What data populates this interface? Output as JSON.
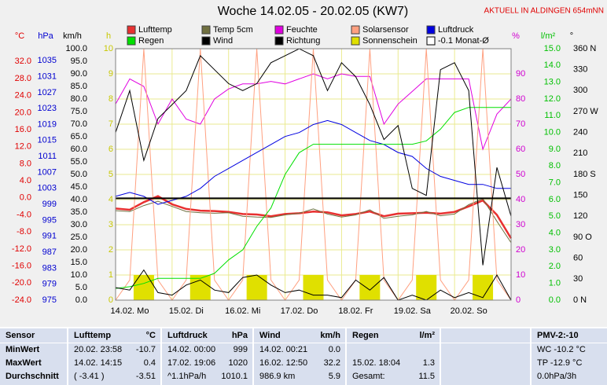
{
  "chart_data": {
    "type": "line",
    "title": "Woche 14.02.05 - 20.02.05 (KW7)",
    "annotation": "AKTUELL IN ALDINGEN 654mNN",
    "grid": true,
    "x": [
      0,
      0.25,
      0.5,
      0.75,
      1,
      1.25,
      1.5,
      1.75,
      2,
      2.25,
      2.5,
      2.75,
      3,
      3.25,
      3.5,
      3.75,
      4,
      4.25,
      4.5,
      4.75,
      5,
      5.25,
      5.5,
      5.75,
      6,
      6.25,
      6.5,
      6.75,
      7
    ],
    "xlim": [
      0,
      7
    ],
    "xticks": [
      {
        "value": 0,
        "label": "14.02.  Mo"
      },
      {
        "value": 1,
        "label": "15.02.  Di"
      },
      {
        "value": 2,
        "label": "16.02.  Mi"
      },
      {
        "value": 3,
        "label": "17.02.  Do"
      },
      {
        "value": 4,
        "label": "18.02.  Fr"
      },
      {
        "value": 5,
        "label": "19.02.  Sa"
      },
      {
        "value": 6,
        "label": "20.02.  So"
      }
    ],
    "axes": [
      {
        "label": "°C",
        "color": "#e00000",
        "ylim": [
          -24,
          35
        ],
        "yticks": [
          {
            "value": 32,
            "label": "32.0"
          },
          {
            "value": 28,
            "label": "28.0"
          },
          {
            "value": 24,
            "label": "24.0"
          },
          {
            "value": 20,
            "label": "20.0"
          },
          {
            "value": 16,
            "label": "16.0"
          },
          {
            "value": 12,
            "label": "12.0"
          },
          {
            "value": 8,
            "label": "8.0"
          },
          {
            "value": 4,
            "label": "4.0"
          },
          {
            "value": 0,
            "label": "0.0"
          },
          {
            "value": -4,
            "label": "-4.0"
          },
          {
            "value": -8,
            "label": "-8.0"
          },
          {
            "value": -12,
            "label": "-12.0"
          },
          {
            "value": -16,
            "label": "-16.0"
          },
          {
            "value": -20,
            "label": "-20.0"
          },
          {
            "value": -24,
            "label": "-24.0"
          }
        ]
      },
      {
        "label": "hPa",
        "color": "#0000d0",
        "ylim": [
          975,
          1038
        ],
        "yticks": [
          1035,
          1031,
          1027,
          1023,
          1019,
          1015,
          1011,
          1007,
          1003,
          999,
          995,
          991,
          987,
          983,
          979,
          975
        ]
      },
      {
        "label": "km/h",
        "color": "#000000",
        "ylim": [
          0,
          100
        ],
        "yticks": [
          {
            "value": 100,
            "label": "100.0"
          },
          {
            "value": 95,
            "label": "95.0"
          },
          {
            "value": 90,
            "label": "90.0"
          },
          {
            "value": 85,
            "label": "85.0"
          },
          {
            "value": 80,
            "label": "80.0"
          },
          {
            "value": 75,
            "label": "75.0"
          },
          {
            "value": 70,
            "label": "70.0"
          },
          {
            "value": 65,
            "label": "65.0"
          },
          {
            "value": 60,
            "label": "60.0"
          },
          {
            "value": 55,
            "label": "55.0"
          },
          {
            "value": 50,
            "label": "50.0"
          },
          {
            "value": 45,
            "label": "45.0"
          },
          {
            "value": 40,
            "label": "40.0"
          },
          {
            "value": 35,
            "label": "35.0"
          },
          {
            "value": 30,
            "label": "30.0"
          },
          {
            "value": 25,
            "label": "25.0"
          },
          {
            "value": 20,
            "label": "20.0"
          },
          {
            "value": 15,
            "label": "15.0"
          },
          {
            "value": 10,
            "label": "10.0"
          },
          {
            "value": 5,
            "label": "5.0"
          },
          {
            "value": 0,
            "label": "0.0"
          }
        ]
      },
      {
        "label": "h",
        "color": "#c8c800",
        "ylim": [
          0,
          10
        ],
        "yticks": [
          10,
          9,
          8,
          7,
          6,
          5,
          4,
          3,
          2,
          1,
          0
        ]
      },
      {
        "label": "%",
        "color": "#d000d0",
        "ylim": [
          0,
          100
        ],
        "yticks": [
          90,
          80,
          70,
          60,
          50,
          40,
          30,
          20,
          10,
          0
        ]
      },
      {
        "label": "l/m²",
        "color": "#00c000",
        "ylim": [
          0,
          15
        ],
        "yticks": [
          {
            "value": 15,
            "label": "15.0"
          },
          {
            "value": 14,
            "label": "14.0"
          },
          {
            "value": 13,
            "label": "13.0"
          },
          {
            "value": 12,
            "label": "12.0"
          },
          {
            "value": 11,
            "label": "11.0"
          },
          {
            "value": 10,
            "label": "10.0"
          },
          {
            "value": 9,
            "label": "9.0"
          },
          {
            "value": 8,
            "label": "8.0"
          },
          {
            "value": 7,
            "label": "7.0"
          },
          {
            "value": 6,
            "label": "6.0"
          },
          {
            "value": 5,
            "label": "5.0"
          },
          {
            "value": 4,
            "label": "4.0"
          },
          {
            "value": 3,
            "label": "3.0"
          },
          {
            "value": 2,
            "label": "2.0"
          },
          {
            "value": 1,
            "label": "1.0"
          },
          {
            "value": 0,
            "label": "0.0"
          }
        ]
      },
      {
        "label": "°",
        "color": "#000000",
        "ylim": [
          0,
          360
        ],
        "yticks": [
          {
            "value": 360,
            "label": "360 N"
          },
          330,
          300,
          {
            "value": 270,
            "label": "270 W"
          },
          240,
          210,
          {
            "value": 180,
            "label": "180 S"
          },
          150,
          120,
          {
            "value": 90,
            "label": "90  O"
          },
          60,
          30,
          {
            "value": 0,
            "label": "0   N"
          }
        ]
      }
    ],
    "series": [
      {
        "name": "Lufttemp",
        "color": "#e83030",
        "axis": 0,
        "width": 2.5,
        "values": [
          -2.5,
          -2.8,
          -1.0,
          0.4,
          -1.5,
          -2.6,
          -3.0,
          -3.1,
          -3.3,
          -3.8,
          -3.9,
          -4.3,
          -3.8,
          -3.6,
          -3.2,
          -3.4,
          -4.1,
          -3.8,
          -3.2,
          -4.3,
          -3.7,
          -3.6,
          -3.5,
          -3.7,
          -3.3,
          -2.0,
          -0.6,
          -4.0,
          -9.5
        ]
      },
      {
        "name": "Temp 5cm",
        "color": "#707040",
        "axis": 0,
        "width": 1,
        "values": [
          -3.0,
          -3.2,
          -1.8,
          -0.8,
          -2.0,
          -3.2,
          -3.5,
          -3.6,
          -3.5,
          -4.3,
          -4.5,
          -4.6,
          -4.0,
          -3.6,
          -2.6,
          -3.8,
          -4.5,
          -4.0,
          -2.8,
          -4.8,
          -4.3,
          -4.0,
          -3.2,
          -4.2,
          -3.8,
          -1.6,
          -0.2,
          -5.5,
          -10.5
        ]
      },
      {
        "name": "Feuchte",
        "color": "#e000e0",
        "axis": 4,
        "width": 1,
        "values": [
          78,
          88,
          85,
          70,
          80,
          72,
          70,
          80,
          84,
          86,
          86,
          87,
          86,
          88,
          90,
          88,
          90,
          89,
          89,
          70,
          78,
          83,
          88,
          88,
          88,
          88,
          60,
          74,
          80
        ]
      },
      {
        "name": "Solarsensor",
        "color": "#ffa080",
        "axis": 4,
        "width": 1,
        "values": [
          0,
          8,
          100,
          8,
          0,
          8,
          100,
          8,
          0,
          8,
          100,
          8,
          0,
          8,
          100,
          8,
          0,
          8,
          100,
          8,
          0,
          8,
          100,
          8,
          0,
          8,
          100,
          8,
          0
        ]
      },
      {
        "name": "Luftdruck",
        "color": "#0000e0",
        "axis": 1,
        "width": 1,
        "values": [
          1001,
          1002,
          1001,
          999,
          1000,
          1001,
          1003,
          1006,
          1008,
          1010,
          1012,
          1014,
          1016,
          1017,
          1019,
          1020,
          1019,
          1017,
          1015,
          1014,
          1012,
          1011,
          1008,
          1006,
          1005,
          1004,
          1004,
          1003,
          1003
        ]
      },
      {
        "name": "Regen",
        "color": "#00e000",
        "axis": 5,
        "width": 1,
        "values": [
          0.7,
          0.8,
          1.0,
          1.3,
          1.3,
          1.3,
          1.3,
          1.6,
          2.4,
          3.0,
          4.4,
          5.5,
          7.5,
          8.8,
          9.3,
          9.3,
          9.3,
          9.3,
          9.3,
          9.3,
          9.3,
          9.3,
          9.5,
          10.2,
          11.2,
          11.5,
          11.5,
          11.5,
          11.5
        ]
      },
      {
        "name": "Wind",
        "color": "#000000",
        "axis": 2,
        "width": 1,
        "values": [
          5,
          4,
          12,
          3,
          2,
          6,
          8,
          4,
          3,
          9,
          10,
          6,
          3,
          4,
          2,
          2,
          1,
          8,
          4,
          9,
          0,
          2,
          0,
          4,
          1,
          3,
          1,
          10,
          0
        ]
      },
      {
        "name": "Richtung",
        "color": "#000000",
        "axis": 6,
        "width": 1,
        "values": [
          240,
          300,
          200,
          260,
          280,
          300,
          350,
          330,
          310,
          300,
          310,
          340,
          350,
          360,
          350,
          300,
          340,
          320,
          280,
          230,
          250,
          160,
          150,
          330,
          340,
          300,
          50,
          190,
          120
        ]
      },
      {
        "name": "Sonnenschein",
        "color": "#e0e000",
        "axis": 3,
        "mark": "bar",
        "values": [
          0,
          0,
          1,
          0,
          0,
          0,
          1,
          0,
          0,
          0,
          1,
          0,
          0,
          0,
          1,
          0,
          0,
          0,
          1,
          0,
          0,
          0,
          1,
          0,
          0,
          0,
          1,
          0,
          0
        ]
      }
    ],
    "reference": {
      "name": "-0.1 Monat-Ø",
      "value": -0.1,
      "axis": 0,
      "color": "#000000"
    }
  },
  "table": {
    "header": [
      [
        "Sensor"
      ],
      [
        "Lufttemp",
        "°C"
      ],
      [
        "Luftdruck",
        "hPa"
      ],
      [
        "Wind",
        "km/h"
      ],
      [
        "Regen",
        "l/m²"
      ],
      [],
      [
        "PMV-2:-10"
      ]
    ],
    "rows": [
      [
        [
          "MinWert"
        ],
        [
          "20.02.  23:58",
          "-10.7"
        ],
        [
          "14.02.  00:00",
          "999"
        ],
        [
          "14.02.  00:21",
          "0.0"
        ],
        [],
        [],
        [
          "WC -10.2 °C"
        ]
      ],
      [
        [
          "MaxWert"
        ],
        [
          "14.02.  14:15",
          "0.4"
        ],
        [
          "17.02.  19:06",
          "1020"
        ],
        [
          "16.02.  12:50",
          "32.2"
        ],
        [
          "15.02.  18:04",
          "1.3"
        ],
        [],
        [
          "TP -12.9 °C"
        ]
      ],
      [
        [
          "Durchschnitt"
        ],
        [
          "( -3.41 )",
          "-3.51"
        ],
        [
          "^1.1hPa/h",
          "1010.1"
        ],
        [
          "986.9 km",
          "5.9"
        ],
        [
          "Gesamt:",
          "11.5"
        ],
        [],
        [
          "0.0hPa/3h"
        ]
      ]
    ]
  }
}
